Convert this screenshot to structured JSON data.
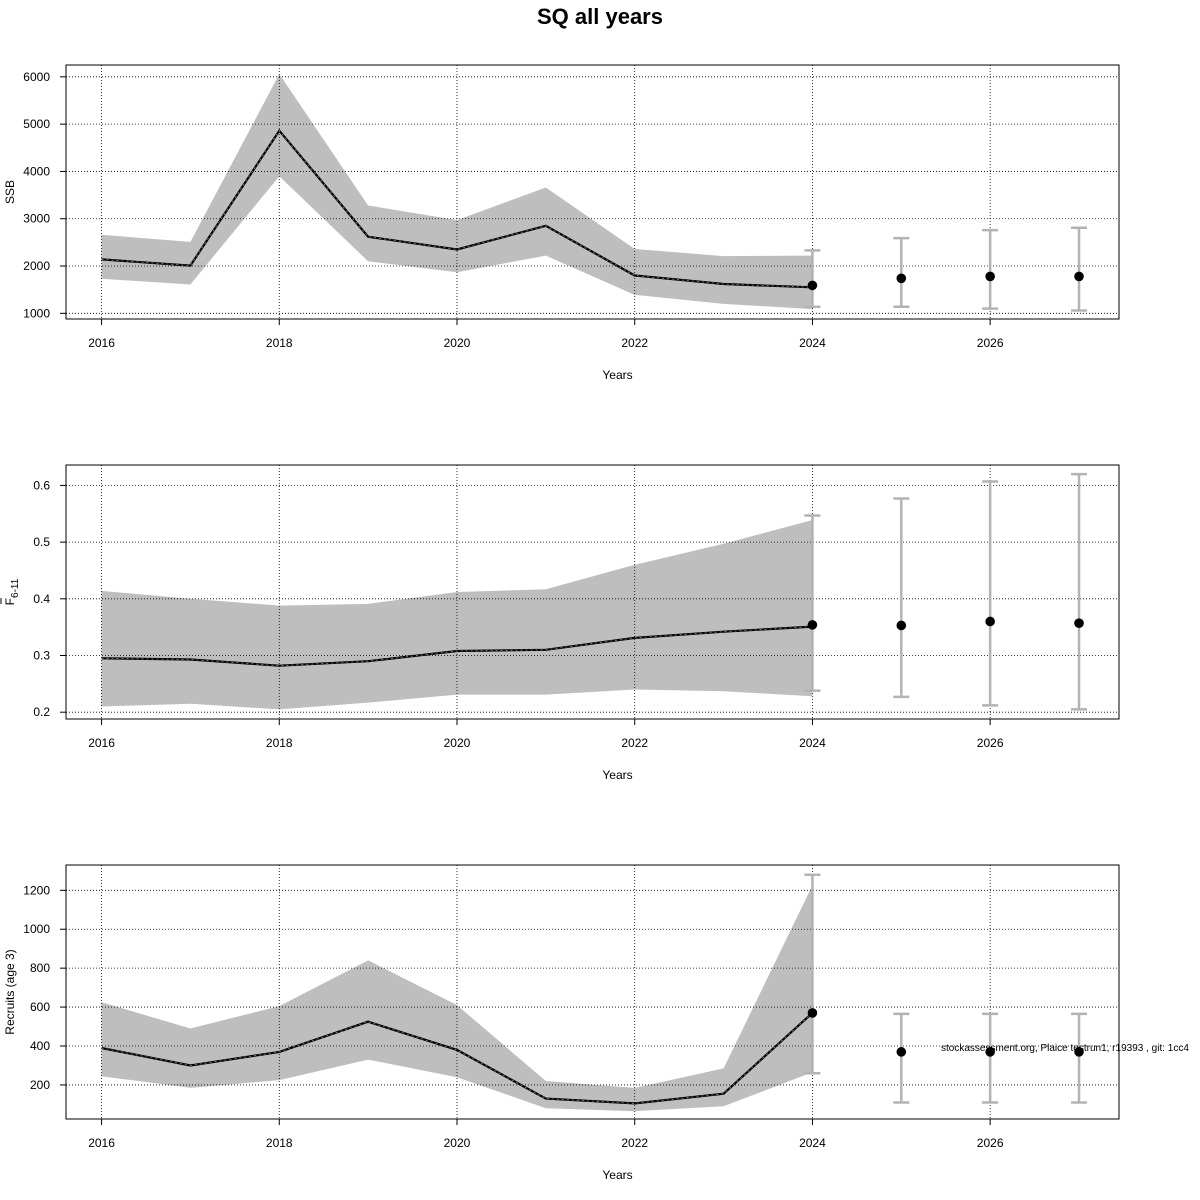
{
  "title": "SQ all years",
  "footnote": "stockassessment.org, Plaice testrun1, r19393 , git: 1cc4",
  "colors": {
    "band": "#bebebe",
    "line": "#000000",
    "errorbar": "#b3b3b3",
    "grid": "#000000",
    "point": "#000000"
  },
  "chart_data": [
    {
      "type": "line",
      "ylabel": "SSB",
      "xlabel": "Years",
      "xlim": [
        2015.6,
        2027.45
      ],
      "ylim": [
        880,
        6250
      ],
      "xticks": [
        2016,
        2018,
        2020,
        2022,
        2024,
        2026
      ],
      "xtick_labels": [
        "2016",
        "2018",
        "2020",
        "2022",
        "2024",
        "2026"
      ],
      "yticks": [
        1000,
        2000,
        3000,
        4000,
        5000,
        6000
      ],
      "ytick_labels": [
        "1000",
        "2000",
        "3000",
        "4000",
        "5000",
        "6000"
      ],
      "grid": true,
      "series": [
        {
          "x": [
            2016,
            2017,
            2018,
            2019,
            2020,
            2021,
            2022,
            2023,
            2024
          ],
          "estimate": [
            2140,
            2010,
            4860,
            2620,
            2350,
            2850,
            1800,
            1620,
            1550
          ],
          "lower": [
            1730,
            1610,
            3900,
            2100,
            1870,
            2220,
            1390,
            1200,
            1090
          ],
          "upper": [
            2660,
            2510,
            6060,
            3280,
            2970,
            3660,
            2360,
            2210,
            2220
          ]
        }
      ],
      "forecast": {
        "x": [
          2024,
          2025,
          2026,
          2027
        ],
        "median": [
          1590,
          1740,
          1780,
          1780
        ],
        "lower": [
          1140,
          1140,
          1100,
          1060
        ],
        "upper": [
          2330,
          2590,
          2760,
          2810
        ]
      }
    },
    {
      "type": "line",
      "ylabel": "F6-11",
      "ylabel_main": "F",
      "ylabel_sub": "6-11",
      "xlabel": "Years",
      "xlim": [
        2015.6,
        2027.45
      ],
      "ylim": [
        0.188,
        0.636
      ],
      "xticks": [
        2016,
        2018,
        2020,
        2022,
        2024,
        2026
      ],
      "xtick_labels": [
        "2016",
        "2018",
        "2020",
        "2022",
        "2024",
        "2026"
      ],
      "yticks": [
        0.2,
        0.3,
        0.4,
        0.5,
        0.6
      ],
      "ytick_labels": [
        "0.2",
        "0.3",
        "0.4",
        "0.5",
        "0.6"
      ],
      "grid": true,
      "series": [
        {
          "x": [
            2016,
            2017,
            2018,
            2019,
            2020,
            2021,
            2022,
            2023,
            2024
          ],
          "estimate": [
            0.295,
            0.293,
            0.282,
            0.29,
            0.308,
            0.31,
            0.331,
            0.342,
            0.351
          ],
          "lower": [
            0.21,
            0.215,
            0.205,
            0.217,
            0.231,
            0.231,
            0.24,
            0.237,
            0.228
          ],
          "upper": [
            0.414,
            0.4,
            0.388,
            0.391,
            0.412,
            0.417,
            0.46,
            0.497,
            0.539
          ]
        }
      ],
      "forecast": {
        "x": [
          2024,
          2025,
          2026,
          2027
        ],
        "median": [
          0.354,
          0.353,
          0.36,
          0.357
        ],
        "lower": [
          0.238,
          0.227,
          0.212,
          0.205
        ],
        "upper": [
          0.547,
          0.577,
          0.607,
          0.62
        ]
      }
    },
    {
      "type": "line",
      "ylabel": "Recruits (age 3)",
      "xlabel": "Years",
      "xlim": [
        2015.6,
        2027.45
      ],
      "ylim": [
        25,
        1330
      ],
      "xticks": [
        2016,
        2018,
        2020,
        2022,
        2024,
        2026
      ],
      "xtick_labels": [
        "2016",
        "2018",
        "2020",
        "2022",
        "2024",
        "2026"
      ],
      "yticks": [
        200,
        400,
        600,
        800,
        1000,
        1200
      ],
      "ytick_labels": [
        "200",
        "400",
        "600",
        "800",
        "1000",
        "1200"
      ],
      "grid": true,
      "series": [
        {
          "x": [
            2016,
            2017,
            2018,
            2019,
            2020,
            2021,
            2022,
            2023,
            2024
          ],
          "estimate": [
            390,
            300,
            370,
            525,
            380,
            130,
            105,
            155,
            570
          ],
          "lower": [
            245,
            185,
            225,
            330,
            240,
            80,
            65,
            90,
            265
          ],
          "upper": [
            625,
            490,
            605,
            840,
            610,
            220,
            185,
            285,
            1225
          ]
        }
      ],
      "forecast": {
        "x": [
          2024,
          2025,
          2026,
          2027
        ],
        "median": [
          570,
          370,
          370,
          370
        ],
        "lower": [
          260,
          110,
          110,
          110
        ],
        "upper": [
          1280,
          565,
          565,
          565
        ]
      }
    }
  ]
}
